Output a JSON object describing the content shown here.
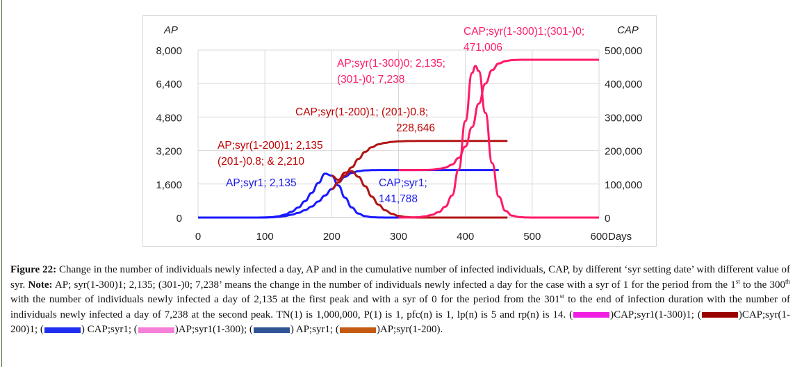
{
  "chart_data": {
    "type": "line",
    "x_label": "Days",
    "y_left_label": "AP",
    "y_right_label": "CAP",
    "xlim": [
      0,
      600
    ],
    "ylim_left": [
      0,
      8000
    ],
    "ylim_right": [
      0,
      500000
    ],
    "x_ticks": [
      "0",
      "100",
      "200",
      "300",
      "400",
      "500",
      "600"
    ],
    "y_left_ticks": [
      "0",
      "1,600",
      "3,200",
      "4,800",
      "6,400",
      "8,000"
    ],
    "y_right_ticks": [
      "0",
      "100,000",
      "200,000",
      "300,000",
      "400,000",
      "500,000"
    ],
    "grid": true,
    "series": [
      {
        "name": "AP;syr1",
        "axis": "left",
        "color": "#1a1aff",
        "x": [
          0,
          90,
          100,
          110,
          120,
          130,
          140,
          150,
          160,
          170,
          180,
          190,
          200,
          210,
          220,
          230,
          240,
          250,
          260,
          270,
          280,
          290,
          300
        ],
        "y": [
          0,
          0,
          5,
          20,
          60,
          140,
          280,
          480,
          780,
          1180,
          1650,
          2100,
          2000,
          1530,
          950,
          480,
          190,
          65,
          18,
          4,
          1,
          0,
          0
        ]
      },
      {
        "name": "CAP;syr1",
        "axis": "right",
        "color": "#1a1aff",
        "x": [
          0,
          90,
          100,
          110,
          120,
          130,
          140,
          150,
          160,
          170,
          180,
          190,
          200,
          210,
          220,
          230,
          240,
          250,
          260,
          270,
          300,
          450
        ],
        "y": [
          0,
          0,
          200,
          800,
          2000,
          4500,
          8500,
          14000,
          22000,
          33000,
          48000,
          66000,
          85000,
          105000,
          122000,
          133000,
          138500,
          140800,
          141500,
          141750,
          141788,
          141788
        ]
      },
      {
        "name": "AP;syr(1-200)",
        "axis": "left",
        "color": "#b01515",
        "x": [
          200,
          210,
          220,
          230,
          240,
          250,
          260,
          270,
          280,
          290,
          300,
          310,
          320,
          330,
          340,
          463
        ],
        "y": [
          2000,
          1800,
          2150,
          2210,
          1950,
          1500,
          1000,
          620,
          350,
          180,
          80,
          30,
          10,
          2,
          0,
          0
        ]
      },
      {
        "name": "CAP;syr(1-200)1;(201-)0.8",
        "axis": "right",
        "color": "#b01515",
        "x": [
          200,
          210,
          220,
          230,
          240,
          250,
          260,
          270,
          280,
          290,
          300,
          310,
          320,
          330,
          463
        ],
        "y": [
          85000,
          105000,
          126000,
          150000,
          175000,
          196000,
          210000,
          218500,
          223000,
          225800,
          227400,
          228200,
          228500,
          228646,
          228646
        ]
      },
      {
        "name": "AP;syr(1-300)1;(301-)0",
        "axis": "left",
        "color": "#ff1a66",
        "x": [
          300,
          320,
          330,
          340,
          350,
          360,
          370,
          380,
          390,
          400,
          410,
          415,
          420,
          430,
          440,
          450,
          460,
          470,
          480,
          490,
          500,
          600
        ],
        "y": [
          0,
          5,
          20,
          60,
          130,
          260,
          520,
          1050,
          2300,
          4600,
          6900,
          7238,
          7000,
          5000,
          2600,
          1000,
          320,
          90,
          25,
          5,
          0,
          0
        ]
      },
      {
        "name": "CAP;syr(1-300)1;(301-)0",
        "axis": "right",
        "color": "#ff1a66",
        "x": [
          300,
          340,
          350,
          360,
          370,
          380,
          390,
          400,
          410,
          420,
          430,
          440,
          450,
          460,
          470,
          480,
          490,
          500,
          600
        ],
        "y": [
          141788,
          142000,
          143000,
          145000,
          149000,
          158000,
          178000,
          212000,
          270000,
          340000,
          400000,
          440000,
          460000,
          467000,
          470000,
          470800,
          471006,
          471006,
          471006
        ]
      }
    ],
    "annotations": [
      {
        "lines": [
          "CAP;syr(1-300)1;(301-)0;",
          "471,006"
        ],
        "color": "#ff1a66"
      },
      {
        "lines": [
          "AP;syr(1-300)0; 2,135;",
          "(301-)0;  7,238"
        ],
        "color": "#ff1a66"
      },
      {
        "lines": [
          "CAP;syr(1-200)1; (201-)0.8;",
          "228,646"
        ],
        "color": "#c00000"
      },
      {
        "lines": [
          "AP;syr(1-200)1;  2,135",
          "(201-)0.8;  & 2,210"
        ],
        "color": "#c00000"
      },
      {
        "lines": [
          "AP;syr1; 2,135"
        ],
        "color": "#1a1aee"
      },
      {
        "lines": [
          "CAP;syr1;",
          "141,788"
        ],
        "color": "#1a1aee"
      }
    ]
  },
  "caption": {
    "figure_label": "Figure 22:",
    "text1": " Change in the number of individuals newly infected a day, AP and in the cumulative number of infected individuals, CAP, by different ‘syr setting date’ with different value of syr. ",
    "note_label": "Note:",
    "text2": " AP; syr(1-300)1; 2,135; (301-)0; 7,238’ means the change in the number of individuals newly infected a day for the case with a syr of 1 for the period from the 1",
    "sup1": "st",
    "text3": " to the 300",
    "sup2": "th",
    "text4": " with the number of individuals newly infected a day of 2,135 at the first peak and with a syr of 0 for the period from the 301",
    "sup3": "st",
    "text5": " to the end of infection duration with the number of individuals newly infected a day of 7,238 at the second peak. TN(1) is 1,000,000, P(1) is 1, pfc(n) is 1, lp(n) is 5 and rp(n) is 14. ",
    "legend": [
      {
        "label": "CAP;syr1(1-300)1; ",
        "color": "#f01ee0"
      },
      {
        "label": "CAP;syr(1-200)1; ",
        "color": "#9a0000"
      },
      {
        "label": " CAP;syr1; ",
        "color": "#1f2ef0"
      },
      {
        "label": "AP;syr1(1-300); ",
        "color": "#f57fd8"
      },
      {
        "label": " AP;syr1; ",
        "color": "#2f5597"
      },
      {
        "label": "AP;syr(1-200).",
        "color": "#c55a11"
      }
    ]
  }
}
